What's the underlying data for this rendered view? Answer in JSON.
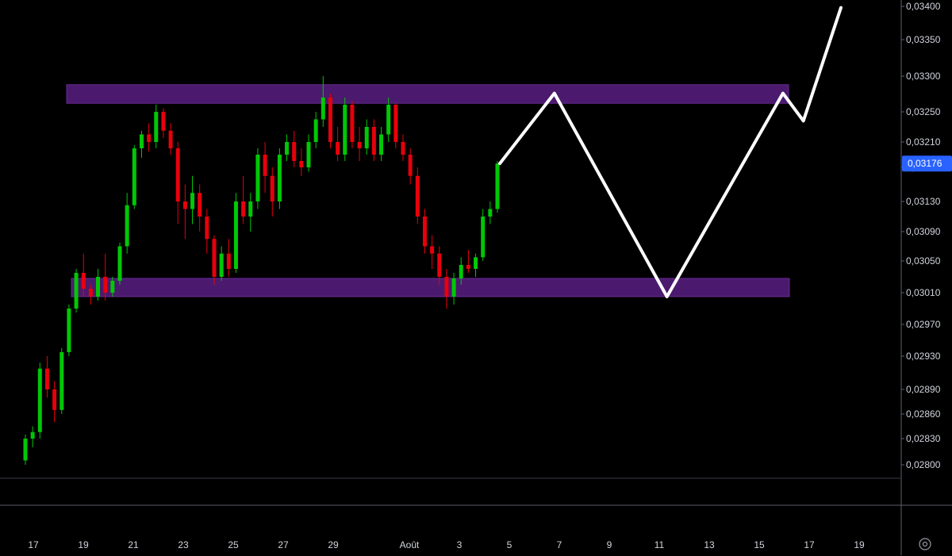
{
  "chart_data": {
    "type": "candlestick",
    "x_labels": [
      "17",
      "19",
      "21",
      "23",
      "25",
      "27",
      "29",
      "Août",
      "3",
      "5",
      "7",
      "9",
      "11",
      "13",
      "15",
      "17",
      "19"
    ],
    "y_ticks": [
      "0,03400",
      "0,03350",
      "0,03300",
      "0,03250",
      "0,03210",
      "0,03170",
      "0,03130",
      "0,03090",
      "0,03050",
      "0,03010",
      "0,02970",
      "0,02930",
      "0,02890",
      "0,02860",
      "0,02830",
      "0,02800"
    ],
    "current_price_label": "0,03176",
    "current_price": 0.03176,
    "ylim": [
      0.0278,
      0.034
    ],
    "zones": [
      {
        "name": "resistance",
        "from": 0.03262,
        "to": 0.03288,
        "x_start": "17.3",
        "x_end": "16.2"
      },
      {
        "name": "support",
        "from": 0.03005,
        "to": 0.03028,
        "x_start": "17.3",
        "x_end": "16.2"
      }
    ],
    "candles": [
      [
        0.02805,
        0.02835,
        0.028,
        0.0283
      ],
      [
        0.0283,
        0.02845,
        0.0282,
        0.02838
      ],
      [
        0.02838,
        0.02922,
        0.0283,
        0.02915
      ],
      [
        0.02915,
        0.0293,
        0.0288,
        0.0289
      ],
      [
        0.0289,
        0.029,
        0.0285,
        0.02865
      ],
      [
        0.02865,
        0.0294,
        0.0286,
        0.02935
      ],
      [
        0.02935,
        0.02995,
        0.0293,
        0.0299
      ],
      [
        0.0299,
        0.0304,
        0.02985,
        0.03035
      ],
      [
        0.03035,
        0.0306,
        0.03005,
        0.03015
      ],
      [
        0.03015,
        0.0302,
        0.02995,
        0.03005
      ],
      [
        0.03005,
        0.0304,
        0.03,
        0.0303
      ],
      [
        0.0303,
        0.0306,
        0.03,
        0.0301
      ],
      [
        0.0301,
        0.0303,
        0.03005,
        0.03025
      ],
      [
        0.03025,
        0.03075,
        0.0302,
        0.0307
      ],
      [
        0.0307,
        0.0314,
        0.0306,
        0.03125
      ],
      [
        0.03125,
        0.03205,
        0.0312,
        0.032
      ],
      [
        0.032,
        0.03225,
        0.03185,
        0.0322
      ],
      [
        0.0322,
        0.03235,
        0.03195,
        0.0321
      ],
      [
        0.0321,
        0.0326,
        0.032,
        0.0325
      ],
      [
        0.0325,
        0.03255,
        0.03215,
        0.03225
      ],
      [
        0.03225,
        0.03235,
        0.0319,
        0.032
      ],
      [
        0.032,
        0.0321,
        0.031,
        0.0313
      ],
      [
        0.0313,
        0.0315,
        0.0308,
        0.0312
      ],
      [
        0.0312,
        0.0316,
        0.031,
        0.0314
      ],
      [
        0.0314,
        0.0315,
        0.0309,
        0.0311
      ],
      [
        0.0311,
        0.0312,
        0.0306,
        0.0308
      ],
      [
        0.0308,
        0.03085,
        0.0302,
        0.0303
      ],
      [
        0.0303,
        0.0307,
        0.03025,
        0.0306
      ],
      [
        0.0306,
        0.0308,
        0.0303,
        0.0304
      ],
      [
        0.0304,
        0.0314,
        0.03035,
        0.0313
      ],
      [
        0.0313,
        0.0316,
        0.031,
        0.0311
      ],
      [
        0.0311,
        0.0314,
        0.0309,
        0.0313
      ],
      [
        0.0313,
        0.032,
        0.0312,
        0.0319
      ],
      [
        0.0319,
        0.0321,
        0.0314,
        0.0316
      ],
      [
        0.0316,
        0.0317,
        0.0311,
        0.0313
      ],
      [
        0.0313,
        0.032,
        0.0312,
        0.0319
      ],
      [
        0.0319,
        0.0322,
        0.0318,
        0.0321
      ],
      [
        0.0321,
        0.03225,
        0.0317,
        0.0318
      ],
      [
        0.0318,
        0.032,
        0.0316,
        0.0317
      ],
      [
        0.0317,
        0.0322,
        0.03165,
        0.0321
      ],
      [
        0.0321,
        0.0325,
        0.032,
        0.0324
      ],
      [
        0.0324,
        0.033,
        0.0323,
        0.0327
      ],
      [
        0.0327,
        0.03275,
        0.032,
        0.0321
      ],
      [
        0.0321,
        0.0323,
        0.0318,
        0.0319
      ],
      [
        0.0319,
        0.0327,
        0.0318,
        0.0326
      ],
      [
        0.0326,
        0.03265,
        0.032,
        0.0321
      ],
      [
        0.0321,
        0.0323,
        0.0318,
        0.032
      ],
      [
        0.032,
        0.0324,
        0.0319,
        0.0323
      ],
      [
        0.0323,
        0.0324,
        0.0318,
        0.0319
      ],
      [
        0.0319,
        0.0323,
        0.0318,
        0.0322
      ],
      [
        0.0322,
        0.0327,
        0.0321,
        0.0326
      ],
      [
        0.0326,
        0.03262,
        0.032,
        0.0321
      ],
      [
        0.0321,
        0.0322,
        0.0318,
        0.0319
      ],
      [
        0.0319,
        0.032,
        0.0315,
        0.0316
      ],
      [
        0.0316,
        0.0317,
        0.031,
        0.0311
      ],
      [
        0.0311,
        0.0312,
        0.0306,
        0.0307
      ],
      [
        0.0307,
        0.03085,
        0.0304,
        0.0306
      ],
      [
        0.0306,
        0.0307,
        0.0302,
        0.0303
      ],
      [
        0.0303,
        0.0304,
        0.0299,
        0.03005
      ],
      [
        0.03005,
        0.03035,
        0.02995,
        0.03028
      ],
      [
        0.03028,
        0.03055,
        0.0302,
        0.03045
      ],
      [
        0.03045,
        0.03065,
        0.03035,
        0.0304
      ],
      [
        0.0304,
        0.0306,
        0.0303,
        0.03055
      ],
      [
        0.03055,
        0.0312,
        0.0305,
        0.0311
      ],
      [
        0.0311,
        0.0313,
        0.031,
        0.0312
      ],
      [
        0.0312,
        0.0318,
        0.03115,
        0.03176
      ]
    ],
    "projection": [
      {
        "t": 0.0,
        "price": 0.03176
      },
      {
        "t": 0.16,
        "price": 0.03276
      },
      {
        "t": 0.49,
        "price": 0.03005
      },
      {
        "t": 0.83,
        "price": 0.03276
      },
      {
        "t": 0.89,
        "price": 0.03238
      },
      {
        "t": 1.0,
        "price": 0.03398
      }
    ],
    "colors": {
      "background": "#000000",
      "up": "#00c805",
      "down": "#e8000b",
      "zone_fill": "#4b1a6e",
      "zone_border": "#6a2a96",
      "projection": "#ffffff",
      "price_badge": "#2962ff",
      "axis_line": "#5d606b",
      "text": "#d1d4dc"
    }
  },
  "settings_icon": "gear-icon"
}
